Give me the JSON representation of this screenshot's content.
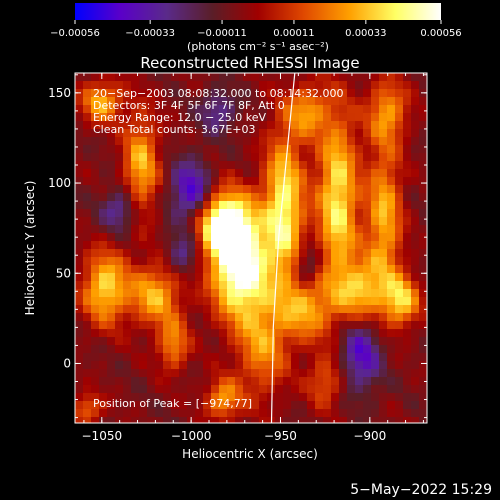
{
  "chart_data": {
    "type": "heatmap",
    "title": "Reconstructed RHESSI Image",
    "xlabel": "Heliocentric X (arcsec)",
    "ylabel": "Heliocentric Y (arcsec)",
    "xlim": [
      -1065,
      -868
    ],
    "ylim": [
      -33,
      161
    ],
    "x_ticks": [
      -1050,
      -1000,
      -950,
      -900
    ],
    "x_tick_labels": [
      "−1050",
      "−1000",
      "−950",
      "−900"
    ],
    "y_ticks": [
      0,
      50,
      100,
      150
    ],
    "y_tick_labels": [
      "0",
      "50",
      "100",
      "150"
    ],
    "colorbar": {
      "range": [
        -0.00056,
        0.00056
      ],
      "tick_values": [
        -0.00056,
        -0.00033,
        -0.00011,
        0.00011,
        0.00033,
        0.00056
      ],
      "tick_labels": [
        "−0.00056",
        "−0.00033",
        "−0.00011",
        "0.00011",
        "0.00033",
        "0.00056"
      ],
      "units_label": "(photons cm⁻² s⁻¹ asec⁻²)",
      "colors": [
        "#0000ff",
        "#5a00c8",
        "#5a2a8a",
        "#5a1e28",
        "#a00000",
        "#e04800",
        "#ffa000",
        "#ffff64",
        "#ffffff"
      ]
    },
    "annotations": [
      "20−Sep−2003 08:08:32.000 to 08:14:32.000",
      "Detectors: 3F 4F 5F 6F 7F 8F, Att 0",
      "Energy Range: 12.0 − 25.0 keV",
      "Clean     Total counts: 3.67E+03"
    ],
    "peak_label": "Position of Peak = [−974,77]",
    "peak_position": [
      -974,
      77
    ],
    "limb_curve": [
      [
        -955,
        -33
      ],
      [
        -954,
        20
      ],
      [
        -951,
        70
      ],
      [
        -947,
        110
      ],
      [
        -942,
        161
      ]
    ],
    "sources": [
      {
        "x": -973,
        "y": 55,
        "sx": 11,
        "sy": 20,
        "amp": 1.05
      },
      {
        "x": -982,
        "y": 78,
        "sx": 10,
        "sy": 12,
        "amp": 0.85
      },
      {
        "x": -948,
        "y": 85,
        "sx": 8,
        "sy": 30,
        "amp": 0.75
      },
      {
        "x": -1048,
        "y": 42,
        "sx": 9,
        "sy": 14,
        "amp": 0.65
      },
      {
        "x": -1020,
        "y": 38,
        "sx": 10,
        "sy": 12,
        "amp": 0.55
      },
      {
        "x": -1028,
        "y": 110,
        "sx": 7,
        "sy": 20,
        "amp": 0.55
      },
      {
        "x": -1010,
        "y": 10,
        "sx": 6,
        "sy": 10,
        "amp": 0.45
      },
      {
        "x": -918,
        "y": 90,
        "sx": 8,
        "sy": 35,
        "amp": 0.7
      },
      {
        "x": -892,
        "y": 80,
        "sx": 7,
        "sy": 30,
        "amp": 0.55
      },
      {
        "x": -905,
        "y": 40,
        "sx": 9,
        "sy": 12,
        "amp": 0.55
      },
      {
        "x": -882,
        "y": 35,
        "sx": 7,
        "sy": 10,
        "amp": 0.6
      },
      {
        "x": -935,
        "y": 30,
        "sx": 10,
        "sy": 12,
        "amp": 0.5
      },
      {
        "x": -960,
        "y": 10,
        "sx": 10,
        "sy": 20,
        "amp": 0.45
      },
      {
        "x": -1050,
        "y": 145,
        "sx": 8,
        "sy": 8,
        "amp": 0.55
      },
      {
        "x": -982,
        "y": -20,
        "sx": 7,
        "sy": 8,
        "amp": 0.5
      },
      {
        "x": -890,
        "y": 140,
        "sx": 8,
        "sy": 12,
        "amp": 0.45
      },
      {
        "x": -1058,
        "y": -25,
        "sx": 6,
        "sy": 6,
        "amp": 0.4
      },
      {
        "x": -935,
        "y": 140,
        "sx": 8,
        "sy": 10,
        "amp": 0.45
      },
      {
        "x": -925,
        "y": -10,
        "sx": 7,
        "sy": 10,
        "amp": 0.35
      }
    ],
    "sinks": [
      {
        "x": -1000,
        "y": 95,
        "sx": 8,
        "sy": 12,
        "amp": 0.55
      },
      {
        "x": -1040,
        "y": 85,
        "sx": 7,
        "sy": 8,
        "amp": 0.4
      },
      {
        "x": -905,
        "y": 5,
        "sx": 8,
        "sy": 14,
        "amp": 0.5
      },
      {
        "x": -935,
        "y": 55,
        "sx": 5,
        "sy": 8,
        "amp": 0.35
      },
      {
        "x": -985,
        "y": 140,
        "sx": 7,
        "sy": 8,
        "amp": 0.35
      },
      {
        "x": -1005,
        "y": 60,
        "sx": 6,
        "sy": 8,
        "amp": 0.35
      }
    ]
  },
  "footer": {
    "date": "5−May−2022 15:29"
  }
}
